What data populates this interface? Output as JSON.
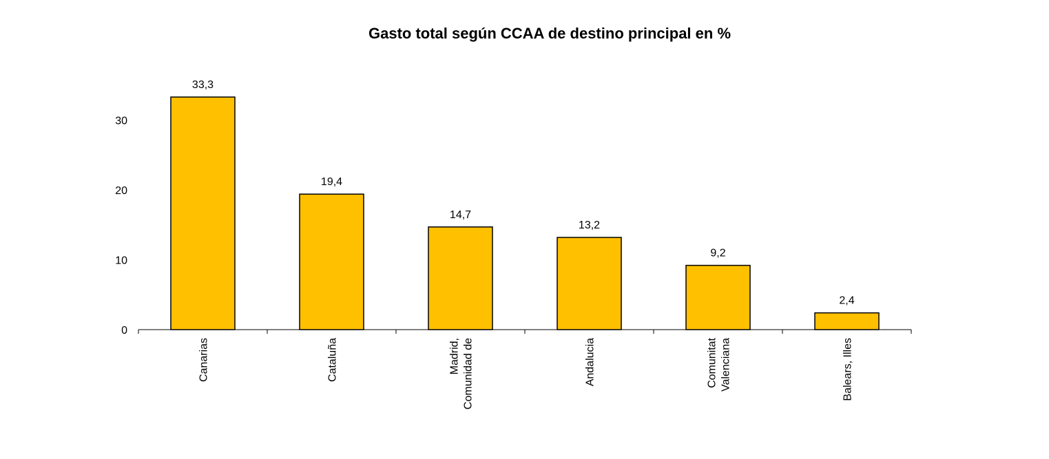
{
  "chart_data": {
    "type": "bar",
    "title": "Gasto total según CCAA de destino principal en %",
    "xlabel": "",
    "ylabel": "",
    "ylim": [
      0,
      35
    ],
    "yticks": [
      0,
      10,
      20,
      30
    ],
    "grid": false,
    "legend": false,
    "bar_color": "#FFC000",
    "bar_stroke": "#000000",
    "categories": [
      [
        "Canarias"
      ],
      [
        "Cataluña"
      ],
      [
        "Madrid,",
        "Comunidad de"
      ],
      [
        "Andalucia"
      ],
      [
        "Comunitat",
        "Valenciana"
      ],
      [
        "Balears, Illes"
      ]
    ],
    "values": [
      33.3,
      19.4,
      14.7,
      13.2,
      9.2,
      2.4
    ],
    "value_labels": [
      "33,3",
      "19,4",
      "14,7",
      "13,2",
      "9,2",
      "2,4"
    ]
  }
}
